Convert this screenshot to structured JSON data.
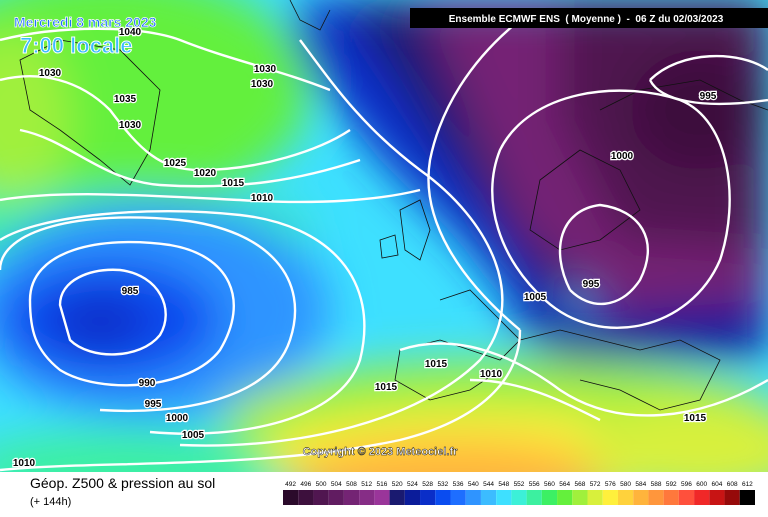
{
  "title": {
    "line1": "Mercredi 8 mars 2023",
    "line2": "7:00 locale"
  },
  "header": "Ensemble ECMWF ENS  ( Moyenne )  -  06 Z du 02/03/2023",
  "isobar_labels": [
    1040,
    1030,
    1035,
    1030,
    1030,
    1030,
    1025,
    1020,
    1015,
    1010,
    985,
    990,
    995,
    1000,
    1005,
    1010,
    995,
    1000,
    995,
    1005,
    1015,
    1015,
    1010,
    1015
  ],
  "copyright": "Copyright © 2023 Meteociel.fr",
  "footer": {
    "title": "Géop. Z500 & pression au sol",
    "lead": "(+ 144h)"
  },
  "scale": {
    "ticks": [
      492,
      496,
      500,
      504,
      508,
      512,
      516,
      520,
      524,
      528,
      532,
      536,
      540,
      544,
      548,
      552,
      556,
      560,
      564,
      568,
      572,
      576,
      580,
      584,
      588,
      592,
      596,
      600,
      604,
      608,
      612
    ],
    "colors": [
      "#2b0a2b",
      "#3d103d",
      "#501650",
      "#611c61",
      "#742474",
      "#862d86",
      "#9a359a",
      "#1a1a70",
      "#0b1c9a",
      "#0a2ec8",
      "#0a4cf0",
      "#1e6eff",
      "#2f94ff",
      "#3cbcff",
      "#3ee0ff",
      "#3cf0d8",
      "#3cf0a0",
      "#3cf064",
      "#64f03c",
      "#a0f03c",
      "#d8f03c",
      "#fff03c",
      "#ffd23c",
      "#ffb43c",
      "#ff963c",
      "#ff783c",
      "#ff503c",
      "#f02828",
      "#c81414",
      "#960a0a",
      "#000000"
    ]
  }
}
